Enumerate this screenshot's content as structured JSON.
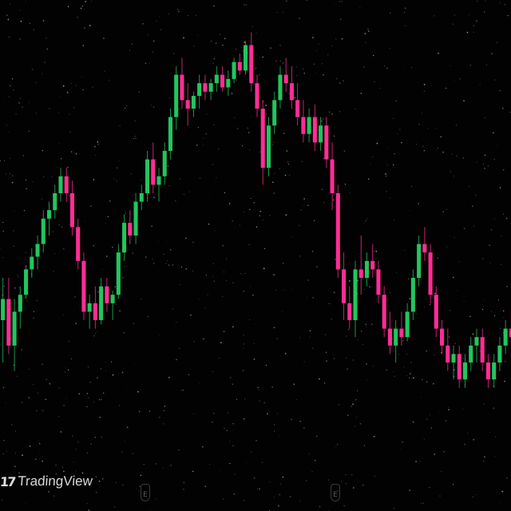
{
  "brand": {
    "logo_text": "TradingView",
    "logo_icon": "tradingview-logo-icon"
  },
  "event_badges": [
    {
      "label": "E",
      "icon": "earnings-event-icon"
    },
    {
      "label": "E",
      "icon": "earnings-event-icon"
    }
  ],
  "colors": {
    "background": "#020202",
    "up": "#22c55e",
    "down": "#ff2d95"
  },
  "chart_data": {
    "type": "candlestick",
    "title": "",
    "xlabel": "",
    "ylabel": "",
    "ylim": [
      0,
      100
    ],
    "grid": false,
    "candles": [
      {
        "o": 30,
        "h": 40,
        "l": 20,
        "c": 35
      },
      {
        "o": 35,
        "h": 40,
        "l": 22,
        "c": 24
      },
      {
        "o": 24,
        "h": 35,
        "l": 18,
        "c": 32
      },
      {
        "o": 32,
        "h": 38,
        "l": 28,
        "c": 36
      },
      {
        "o": 36,
        "h": 43,
        "l": 35,
        "c": 42
      },
      {
        "o": 42,
        "h": 47,
        "l": 40,
        "c": 45
      },
      {
        "o": 45,
        "h": 50,
        "l": 42,
        "c": 48
      },
      {
        "o": 48,
        "h": 56,
        "l": 46,
        "c": 54
      },
      {
        "o": 54,
        "h": 58,
        "l": 50,
        "c": 56
      },
      {
        "o": 56,
        "h": 62,
        "l": 54,
        "c": 60
      },
      {
        "o": 60,
        "h": 66,
        "l": 58,
        "c": 64
      },
      {
        "o": 64,
        "h": 66,
        "l": 58,
        "c": 60
      },
      {
        "o": 60,
        "h": 63,
        "l": 50,
        "c": 52
      },
      {
        "o": 52,
        "h": 54,
        "l": 42,
        "c": 44
      },
      {
        "o": 44,
        "h": 46,
        "l": 30,
        "c": 32
      },
      {
        "o": 32,
        "h": 36,
        "l": 28,
        "c": 34
      },
      {
        "o": 34,
        "h": 38,
        "l": 28,
        "c": 30
      },
      {
        "o": 30,
        "h": 40,
        "l": 29,
        "c": 38
      },
      {
        "o": 38,
        "h": 40,
        "l": 32,
        "c": 34
      },
      {
        "o": 34,
        "h": 37,
        "l": 30,
        "c": 36
      },
      {
        "o": 36,
        "h": 48,
        "l": 35,
        "c": 46
      },
      {
        "o": 46,
        "h": 55,
        "l": 44,
        "c": 53
      },
      {
        "o": 53,
        "h": 56,
        "l": 48,
        "c": 50
      },
      {
        "o": 50,
        "h": 60,
        "l": 48,
        "c": 58
      },
      {
        "o": 58,
        "h": 62,
        "l": 56,
        "c": 60
      },
      {
        "o": 60,
        "h": 70,
        "l": 58,
        "c": 68
      },
      {
        "o": 68,
        "h": 72,
        "l": 60,
        "c": 62
      },
      {
        "o": 62,
        "h": 66,
        "l": 58,
        "c": 64
      },
      {
        "o": 64,
        "h": 72,
        "l": 62,
        "c": 70
      },
      {
        "o": 70,
        "h": 80,
        "l": 68,
        "c": 78
      },
      {
        "o": 78,
        "h": 90,
        "l": 75,
        "c": 88
      },
      {
        "o": 88,
        "h": 92,
        "l": 80,
        "c": 82
      },
      {
        "o": 82,
        "h": 86,
        "l": 76,
        "c": 80
      },
      {
        "o": 80,
        "h": 84,
        "l": 78,
        "c": 83
      },
      {
        "o": 83,
        "h": 88,
        "l": 80,
        "c": 86
      },
      {
        "o": 86,
        "h": 88,
        "l": 82,
        "c": 84
      },
      {
        "o": 84,
        "h": 87,
        "l": 82,
        "c": 86
      },
      {
        "o": 86,
        "h": 90,
        "l": 84,
        "c": 88
      },
      {
        "o": 88,
        "h": 90,
        "l": 84,
        "c": 85
      },
      {
        "o": 85,
        "h": 89,
        "l": 83,
        "c": 87
      },
      {
        "o": 87,
        "h": 92,
        "l": 86,
        "c": 91
      },
      {
        "o": 91,
        "h": 93,
        "l": 88,
        "c": 89
      },
      {
        "o": 89,
        "h": 96,
        "l": 88,
        "c": 95
      },
      {
        "o": 95,
        "h": 98,
        "l": 84,
        "c": 86
      },
      {
        "o": 86,
        "h": 88,
        "l": 78,
        "c": 80
      },
      {
        "o": 80,
        "h": 82,
        "l": 62,
        "c": 66
      },
      {
        "o": 66,
        "h": 78,
        "l": 64,
        "c": 76
      },
      {
        "o": 76,
        "h": 84,
        "l": 74,
        "c": 82
      },
      {
        "o": 82,
        "h": 90,
        "l": 80,
        "c": 88
      },
      {
        "o": 88,
        "h": 92,
        "l": 84,
        "c": 86
      },
      {
        "o": 86,
        "h": 90,
        "l": 80,
        "c": 82
      },
      {
        "o": 82,
        "h": 86,
        "l": 76,
        "c": 78
      },
      {
        "o": 78,
        "h": 82,
        "l": 72,
        "c": 74
      },
      {
        "o": 74,
        "h": 80,
        "l": 72,
        "c": 78
      },
      {
        "o": 78,
        "h": 81,
        "l": 70,
        "c": 72
      },
      {
        "o": 72,
        "h": 78,
        "l": 70,
        "c": 76
      },
      {
        "o": 76,
        "h": 78,
        "l": 66,
        "c": 68
      },
      {
        "o": 68,
        "h": 72,
        "l": 56,
        "c": 60
      },
      {
        "o": 60,
        "h": 62,
        "l": 40,
        "c": 42
      },
      {
        "o": 42,
        "h": 46,
        "l": 30,
        "c": 34
      },
      {
        "o": 34,
        "h": 38,
        "l": 28,
        "c": 30
      },
      {
        "o": 30,
        "h": 44,
        "l": 26,
        "c": 42
      },
      {
        "o": 42,
        "h": 50,
        "l": 36,
        "c": 40
      },
      {
        "o": 40,
        "h": 46,
        "l": 38,
        "c": 44
      },
      {
        "o": 44,
        "h": 48,
        "l": 40,
        "c": 42
      },
      {
        "o": 42,
        "h": 44,
        "l": 34,
        "c": 36
      },
      {
        "o": 36,
        "h": 38,
        "l": 26,
        "c": 28
      },
      {
        "o": 28,
        "h": 32,
        "l": 22,
        "c": 24
      },
      {
        "o": 24,
        "h": 30,
        "l": 20,
        "c": 28
      },
      {
        "o": 28,
        "h": 32,
        "l": 24,
        "c": 26
      },
      {
        "o": 26,
        "h": 34,
        "l": 25,
        "c": 32
      },
      {
        "o": 32,
        "h": 42,
        "l": 30,
        "c": 40
      },
      {
        "o": 40,
        "h": 50,
        "l": 38,
        "c": 48
      },
      {
        "o": 48,
        "h": 52,
        "l": 44,
        "c": 46
      },
      {
        "o": 46,
        "h": 48,
        "l": 34,
        "c": 36
      },
      {
        "o": 36,
        "h": 38,
        "l": 26,
        "c": 28
      },
      {
        "o": 28,
        "h": 30,
        "l": 22,
        "c": 24
      },
      {
        "o": 24,
        "h": 28,
        "l": 18,
        "c": 20
      },
      {
        "o": 20,
        "h": 24,
        "l": 16,
        "c": 22
      },
      {
        "o": 22,
        "h": 24,
        "l": 14,
        "c": 16
      },
      {
        "o": 16,
        "h": 22,
        "l": 14,
        "c": 20
      },
      {
        "o": 20,
        "h": 26,
        "l": 18,
        "c": 24
      },
      {
        "o": 24,
        "h": 28,
        "l": 20,
        "c": 26
      },
      {
        "o": 26,
        "h": 28,
        "l": 18,
        "c": 20
      },
      {
        "o": 20,
        "h": 22,
        "l": 14,
        "c": 16
      },
      {
        "o": 16,
        "h": 22,
        "l": 14,
        "c": 20
      },
      {
        "o": 20,
        "h": 26,
        "l": 18,
        "c": 24
      },
      {
        "o": 24,
        "h": 30,
        "l": 22,
        "c": 28
      },
      {
        "o": 28,
        "h": 32,
        "l": 24,
        "c": 26
      }
    ]
  }
}
